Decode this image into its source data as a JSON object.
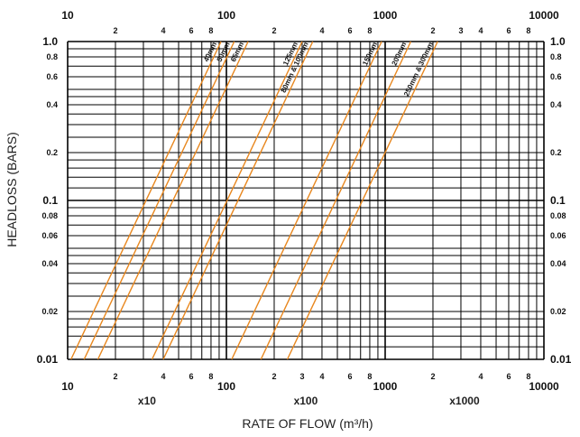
{
  "chart_data": {
    "type": "line",
    "xlabel": "RATE OF FLOW (m³/h)",
    "ylabel": "HEADLOSS (BARS)",
    "xscale": "log",
    "yscale": "log",
    "xlim": [
      10,
      10000
    ],
    "ylim": [
      0.01,
      1.0
    ],
    "grid": true,
    "x_major_ticks": [
      {
        "value": 10,
        "label": "10"
      },
      {
        "value": 100,
        "label": "100"
      },
      {
        "value": 1000,
        "label": "1000"
      },
      {
        "value": 10000,
        "label": "10000"
      }
    ],
    "x_minor_ticks_top": [
      {
        "value": 20,
        "label": "2"
      },
      {
        "value": 40,
        "label": "4"
      },
      {
        "value": 60,
        "label": "6"
      },
      {
        "value": 80,
        "label": "8"
      },
      {
        "value": 200,
        "label": "2"
      },
      {
        "value": 400,
        "label": "4"
      },
      {
        "value": 600,
        "label": "6"
      },
      {
        "value": 800,
        "label": "8"
      },
      {
        "value": 2000,
        "label": "2"
      },
      {
        "value": 3000,
        "label": "3"
      },
      {
        "value": 4000,
        "label": "4"
      },
      {
        "value": 6000,
        "label": "6"
      },
      {
        "value": 8000,
        "label": "8"
      }
    ],
    "x_minor_ticks_bottom": [
      {
        "value": 20,
        "label": "2"
      },
      {
        "value": 40,
        "label": "4"
      },
      {
        "value": 60,
        "label": "6"
      },
      {
        "value": 80,
        "label": "8"
      },
      {
        "value": 200,
        "label": "2"
      },
      {
        "value": 300,
        "label": "3"
      },
      {
        "value": 400,
        "label": "4"
      },
      {
        "value": 600,
        "label": "6"
      },
      {
        "value": 800,
        "label": "8"
      },
      {
        "value": 2000,
        "label": "2"
      },
      {
        "value": 4000,
        "label": "4"
      },
      {
        "value": 6000,
        "label": "6"
      },
      {
        "value": 8000,
        "label": "8"
      }
    ],
    "x_multipliers": [
      {
        "value": 31.6,
        "label": "x10"
      },
      {
        "value": 316,
        "label": "x100"
      },
      {
        "value": 3160,
        "label": "x1000"
      }
    ],
    "y_ticks": [
      {
        "value": 1.0,
        "label": "1.0",
        "major": true
      },
      {
        "value": 0.8,
        "label": "0.8",
        "major": false
      },
      {
        "value": 0.6,
        "label": "0.6",
        "major": false
      },
      {
        "value": 0.4,
        "label": "0.4",
        "major": false
      },
      {
        "value": 0.2,
        "label": "0.2",
        "major": false
      },
      {
        "value": 0.1,
        "label": "0.1",
        "major": true
      },
      {
        "value": 0.08,
        "label": "0.08",
        "major": false
      },
      {
        "value": 0.06,
        "label": "0.06",
        "major": false
      },
      {
        "value": 0.04,
        "label": "0.04",
        "major": false
      },
      {
        "value": 0.02,
        "label": "0.02",
        "major": false
      },
      {
        "value": 0.01,
        "label": "0.01",
        "major": true
      }
    ],
    "series": [
      {
        "name": "40mm",
        "x": [
          10.5,
          92.5
        ],
        "y": [
          0.01,
          1.0
        ]
      },
      {
        "name": "50mm",
        "x": [
          12.7,
          112
        ],
        "y": [
          0.01,
          1.0
        ]
      },
      {
        "name": "65mm",
        "x": [
          15.5,
          137
        ],
        "y": [
          0.01,
          1.0
        ]
      },
      {
        "name": "125mm",
        "x": [
          34,
          300
        ],
        "y": [
          0.01,
          1.0
        ]
      },
      {
        "name": "80mm & 100mm",
        "x": [
          40,
          350
        ],
        "y": [
          0.01,
          1.0
        ]
      },
      {
        "name": "150mm",
        "x": [
          108,
          950
        ],
        "y": [
          0.01,
          1.0
        ]
      },
      {
        "name": "200mm",
        "x": [
          165,
          1450
        ],
        "y": [
          0.01,
          1.0
        ]
      },
      {
        "name": "250mm & 300mm",
        "x": [
          242,
          2140
        ],
        "y": [
          0.01,
          1.0
        ]
      }
    ],
    "line_color": "#e8871e",
    "grid_color": "#000000"
  }
}
